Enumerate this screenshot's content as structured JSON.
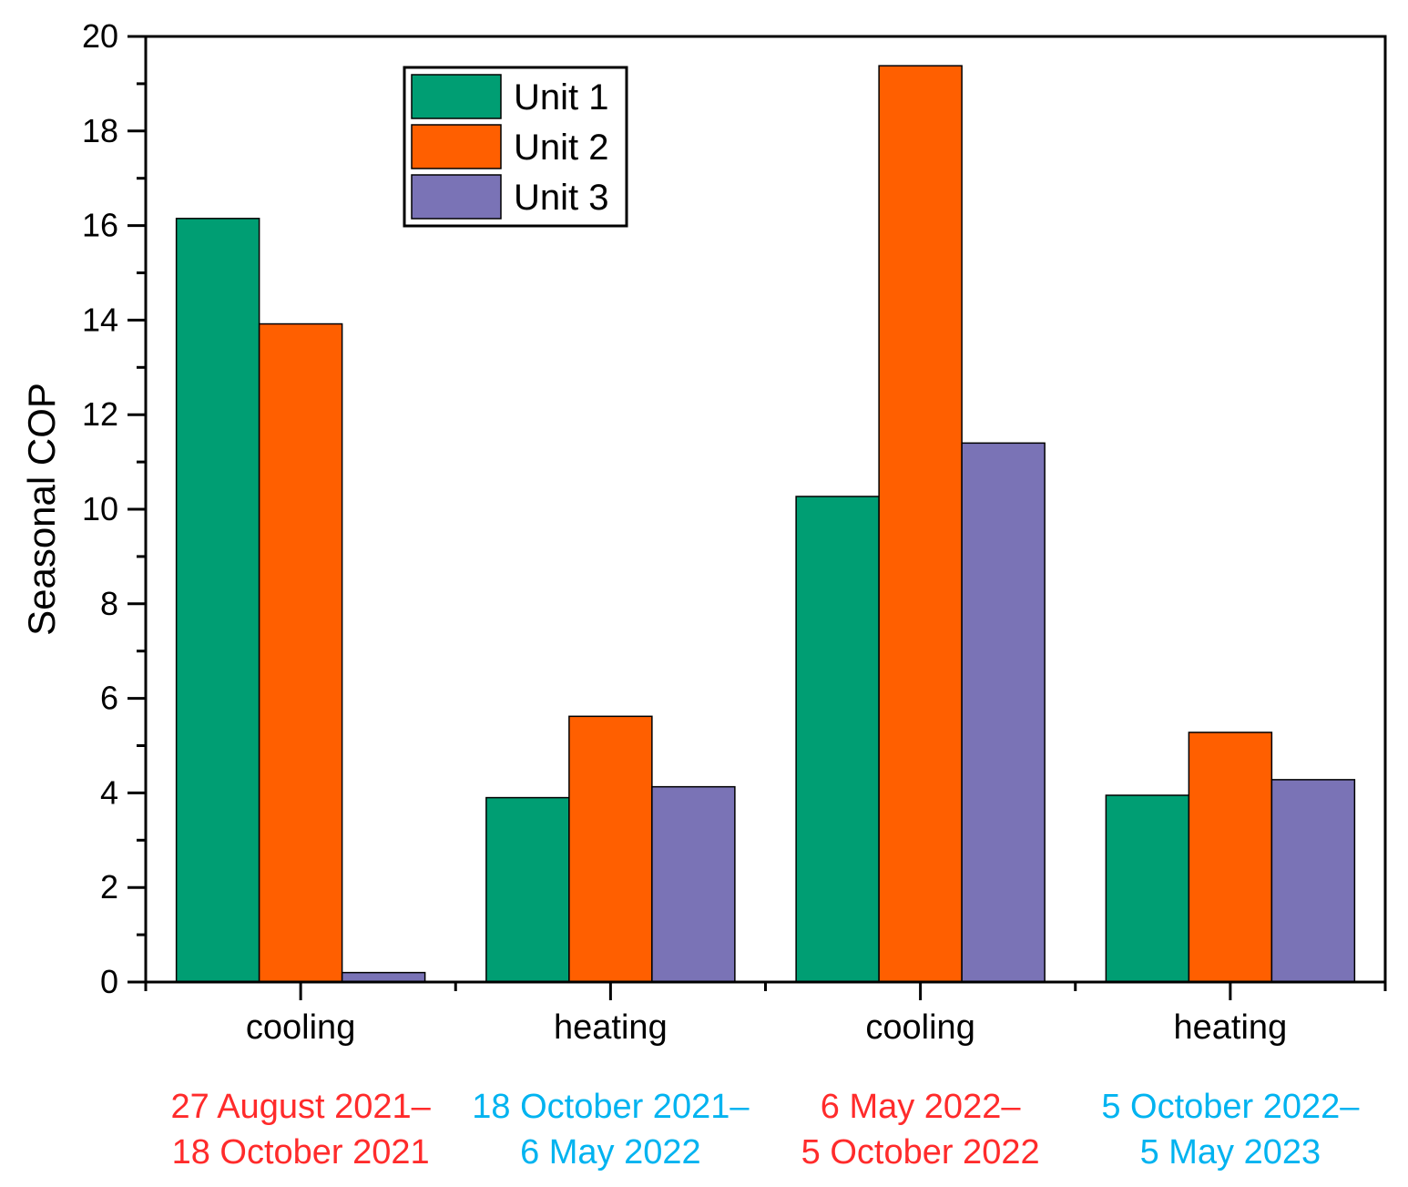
{
  "chart_data": {
    "type": "bar",
    "title": "",
    "xlabel": "",
    "ylabel": "Seasonal COP",
    "ylim": [
      0,
      20
    ],
    "yticks": [
      0,
      2,
      4,
      6,
      8,
      10,
      12,
      14,
      16,
      18,
      20
    ],
    "grid": false,
    "legend_position": "top-center",
    "categories": [
      "cooling",
      "heating",
      "cooling",
      "heating"
    ],
    "periods": [
      {
        "line1": "27 August 2021–",
        "line2": "18 October 2021",
        "color": "#ff2b2b"
      },
      {
        "line1": "18 October 2021–",
        "line2": "6 May 2022",
        "color": "#00b3f0"
      },
      {
        "line1": "6 May 2022–",
        "line2": "5 October 2022",
        "color": "#ff2b2b"
      },
      {
        "line1": "5 October 2022–",
        "line2": "5 May 2023",
        "color": "#00b3f0"
      }
    ],
    "series": [
      {
        "name": "Unit 1",
        "color": "#009e73",
        "values": [
          16.15,
          3.9,
          10.27,
          3.95
        ]
      },
      {
        "name": "Unit 2",
        "color": "#ff5f00",
        "values": [
          13.92,
          5.62,
          19.38,
          5.28
        ]
      },
      {
        "name": "Unit 3",
        "color": "#7a73b6",
        "values": [
          0.2,
          4.13,
          11.4,
          4.28
        ]
      }
    ]
  }
}
